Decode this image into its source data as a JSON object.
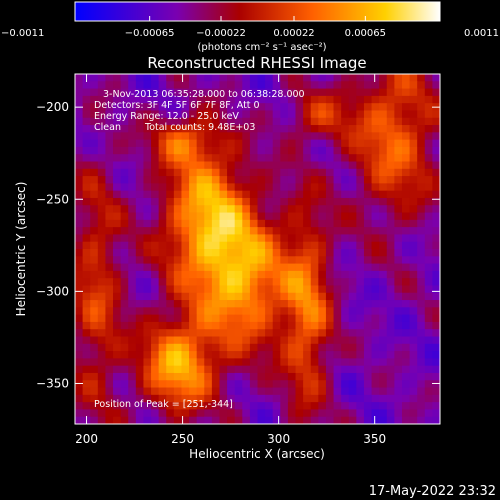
{
  "chart_data": {
    "type": "heatmap",
    "title": "Reconstructed RHESSI Image",
    "xlabel": "Heliocentric X (arcsec)",
    "ylabel": "Heliocentric Y (arcsec)",
    "xlim": [
      194,
      384
    ],
    "ylim": [
      -372,
      -182
    ],
    "x_ticks": [
      200,
      250,
      300,
      350
    ],
    "y_ticks": [
      -200,
      -250,
      -300,
      -350
    ],
    "colorbar": {
      "range": [
        -0.0011,
        0.0011
      ],
      "tick_labels": [
        "-0.0011",
        "-0.00065",
        "-0.00022",
        "0.00022",
        "0.00065",
        "0.0011"
      ],
      "unit_label": "(photons cm⁻² s⁻¹ asec⁻²)",
      "colors": [
        "#0000ff",
        "#7a00b0",
        "#aa0000",
        "#ff6000",
        "#ffd000",
        "#ffffff"
      ]
    },
    "annotations": {
      "time_range": "3-Nov-2013 06:35:28.000 to 06:38:28.000",
      "detectors": "Detectors: 3F 4F 5F 6F 7F 8F, Att 0",
      "energy_range": "Energy Range: 12.0 - 25.0 keV",
      "clean_label": "Clean",
      "total_counts": "Total counts: 9.48E+03",
      "peak_position": "Position of Peak = [251,-344]"
    },
    "sources": [
      {
        "x": 262,
        "y": -260,
        "sx": 16,
        "sy": 28,
        "amp": 0.0011
      },
      {
        "x": 283,
        "y": -295,
        "sx": 16,
        "sy": 26,
        "amp": 0.001
      },
      {
        "x": 248,
        "y": -340,
        "sx": 14,
        "sy": 18,
        "amp": 0.0011
      },
      {
        "x": 315,
        "y": -310,
        "sx": 9,
        "sy": 40,
        "amp": 0.0008
      },
      {
        "x": 360,
        "y": -215,
        "sx": 16,
        "sy": 32,
        "amp": 0.0008
      },
      {
        "x": 250,
        "y": -218,
        "sx": 12,
        "sy": 9,
        "amp": 0.0006
      },
      {
        "x": 205,
        "y": -300,
        "sx": 10,
        "sy": 50,
        "amp": 0.0006
      },
      {
        "x": 320,
        "y": -205,
        "sx": 12,
        "sy": 10,
        "amp": 0.0005
      }
    ]
  },
  "footer": {
    "timestamp": "17-May-2022 23:32"
  }
}
